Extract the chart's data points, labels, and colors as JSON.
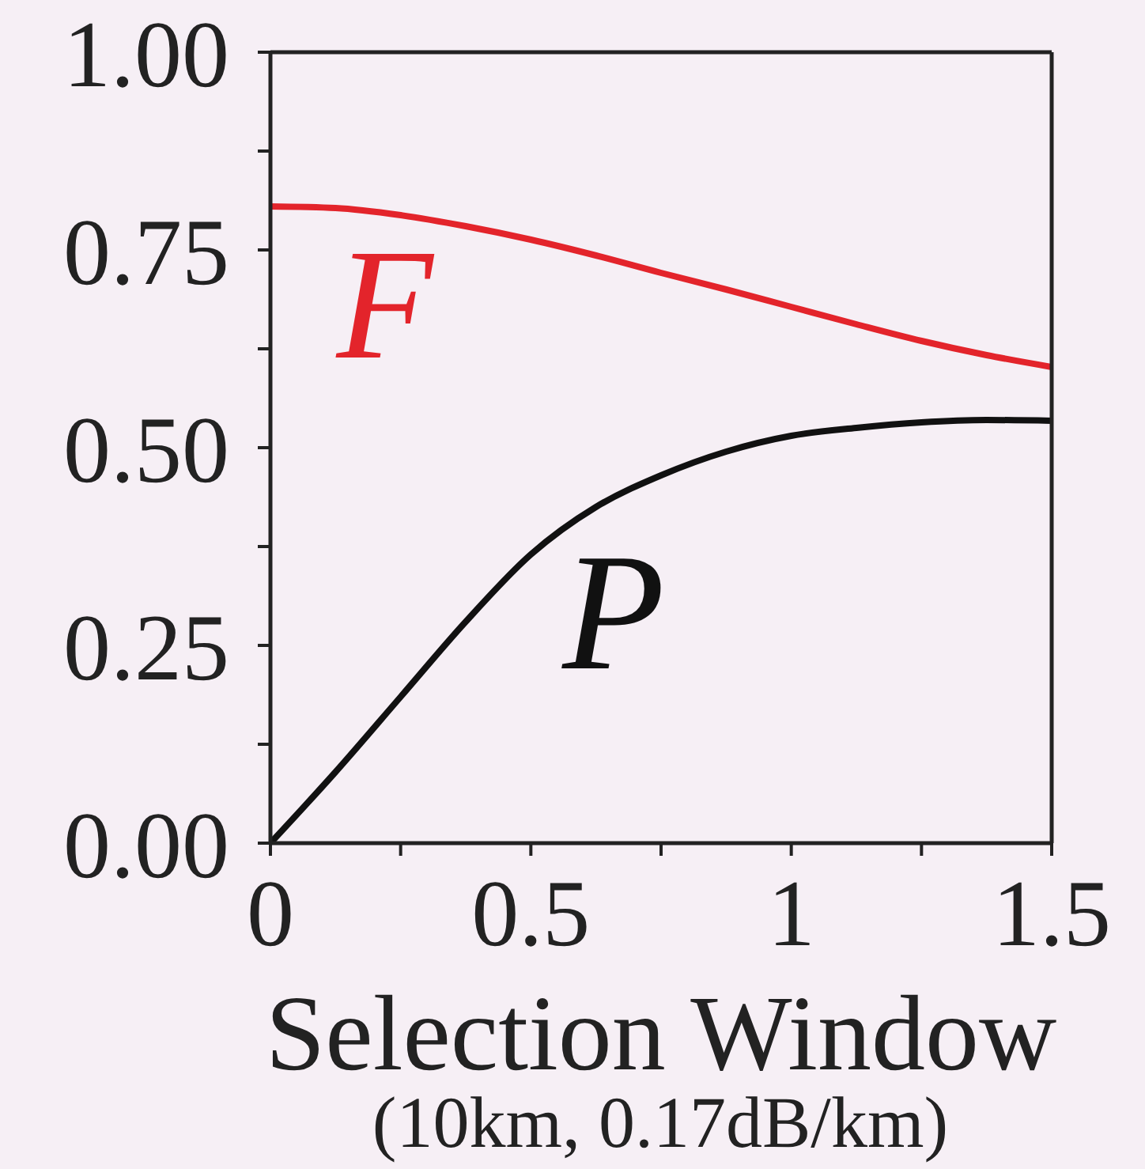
{
  "chart_data": {
    "type": "line",
    "xlabel": "Selection Window",
    "annotations": [
      "(10km, 0.17dB/km)"
    ],
    "x": [
      0,
      0.125,
      0.25,
      0.375,
      0.5,
      0.625,
      0.75,
      0.875,
      1.0,
      1.125,
      1.25,
      1.375,
      1.5
    ],
    "series": [
      {
        "name": "F",
        "color": "#e3242b",
        "values": [
          0.805,
          0.803,
          0.794,
          0.78,
          0.763,
          0.743,
          0.721,
          0.7,
          0.678,
          0.656,
          0.635,
          0.617,
          0.602
        ]
      },
      {
        "name": "P",
        "color": "#111111",
        "values": [
          0,
          0.09,
          0.185,
          0.28,
          0.365,
          0.425,
          0.465,
          0.495,
          0.515,
          0.525,
          0.532,
          0.535,
          0.534
        ]
      }
    ],
    "xlim": [
      0,
      1.5
    ],
    "xticks": [
      0,
      {
        "value": 0.25,
        "label": null
      },
      0.5,
      {
        "value": 0.75,
        "label": null
      },
      1,
      {
        "value": 1.25,
        "label": null
      },
      1.5
    ],
    "ylim": [
      0,
      1
    ],
    "yticks": [
      {
        "value": 0,
        "label": "0.00"
      },
      {
        "value": 0.125,
        "label": null
      },
      0.25,
      {
        "value": 0.375,
        "label": null
      },
      {
        "value": 0.5,
        "label": "0.50"
      },
      {
        "value": 0.625,
        "label": null
      },
      0.75,
      {
        "value": 0.875,
        "label": null
      },
      {
        "value": 1,
        "label": "1.00"
      }
    ],
    "marker": "none",
    "line_style": "solid"
  }
}
